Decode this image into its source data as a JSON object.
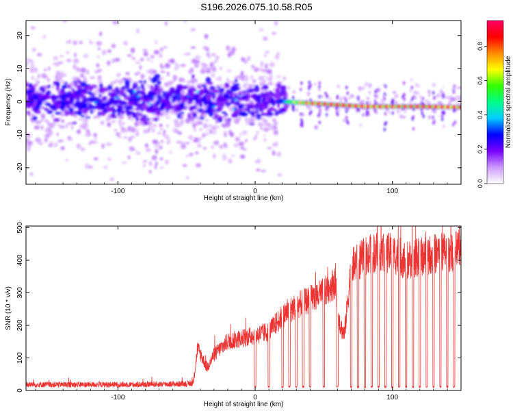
{
  "title": "S196.2026.075.10.58.R05",
  "chart_data": [
    {
      "type": "heatmap",
      "title": "S196.2026.075.10.58.R05",
      "xlabel": "Height of straight line (km)",
      "ylabel": "Frequency (Hz)",
      "xlim": [
        -167,
        150
      ],
      "ylim": [
        -25,
        24.5
      ],
      "x_ticks": [
        -100,
        0,
        100
      ],
      "y_ticks": [
        -20,
        -10,
        0,
        10,
        20
      ],
      "x_tick_labels": [
        "-100",
        "0",
        "100"
      ],
      "y_tick_labels": [
        "-20",
        "-10",
        "0",
        "10",
        "20"
      ],
      "colorbar": {
        "label": "Normalized spectral amplitude",
        "range": [
          0,
          0.95
        ],
        "ticks": [
          0.0,
          0.2,
          0.4,
          0.6,
          0.8
        ],
        "tick_labels": [
          "0.0",
          "0.2",
          "0.4",
          "0.6",
          "0.8"
        ],
        "colormap": [
          "#ffffff",
          "#cc99ff",
          "#7700ff",
          "#0000ff",
          "#00ccff",
          "#00ff88",
          "#33ff00",
          "#ffff00",
          "#ff8800",
          "#ff0000",
          "#ff0066"
        ]
      },
      "ridge": {
        "description": "diffuse scatter for x<20 km, coherent ridge near 0 Hz for x>20 km",
        "x": [
          -167,
          -100,
          -50,
          0,
          20,
          40,
          60,
          80,
          100,
          120,
          150
        ],
        "frequency": [
          0.5,
          0.5,
          0.5,
          0,
          0,
          -0.5,
          -1,
          -1.5,
          -1.5,
          -1.5,
          -1.7
        ],
        "peak_amplitude": [
          0.3,
          0.3,
          0.35,
          0.4,
          0.5,
          0.85,
          0.9,
          0.9,
          0.85,
          0.9,
          0.9
        ]
      }
    },
    {
      "type": "line",
      "xlabel": "Height of straight line (km)",
      "ylabel": "SNR (10 * v/v)",
      "xlim": [
        -167,
        150
      ],
      "ylim": [
        0,
        505
      ],
      "x_ticks": [
        -100,
        0,
        100
      ],
      "y_ticks": [
        0,
        100,
        200,
        300,
        400,
        500
      ],
      "x_tick_labels": [
        "-100",
        "0",
        "100"
      ],
      "y_tick_labels": [
        "0",
        "100",
        "200",
        "300",
        "400",
        "500"
      ],
      "color": "#ee3333",
      "envelope": {
        "x": [
          -167,
          -150,
          -100,
          -50,
          -45,
          -42,
          -35,
          -30,
          -25,
          -20,
          -10,
          0,
          10,
          20,
          30,
          40,
          50,
          55,
          58,
          62,
          65,
          70,
          80,
          90,
          100,
          110,
          120,
          130,
          140,
          150
        ],
        "y": [
          18,
          18,
          18,
          20,
          22,
          130,
          70,
          110,
          130,
          150,
          160,
          170,
          180,
          230,
          260,
          280,
          300,
          320,
          330,
          200,
          170,
          380,
          410,
          430,
          420,
          400,
          410,
          420,
          425,
          430
        ]
      },
      "dropouts_x": [
        0,
        10,
        20,
        25,
        30,
        35,
        40,
        50,
        60,
        70,
        75,
        80,
        85,
        90,
        95,
        100,
        105,
        110,
        115,
        120,
        125,
        130,
        135,
        140,
        145
      ],
      "dropout_level": 8
    }
  ]
}
